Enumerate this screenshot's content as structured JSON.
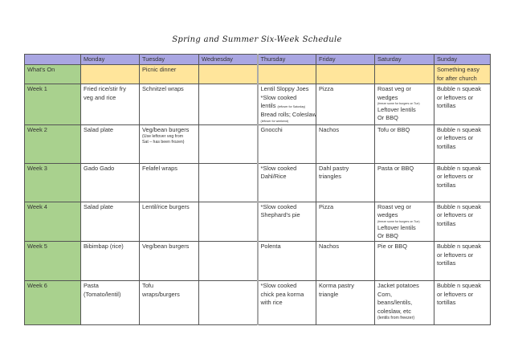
{
  "title": "Spring and Summer Six-Week Schedule",
  "colors": {
    "header": "#a9a6e2",
    "whats_on": "#ffe59b",
    "row_label": "#a9d18e"
  },
  "columns": [
    "",
    "Monday",
    "Tuesday",
    "Wednesday",
    "Thursday",
    "Friday",
    "Saturday",
    "Sunday"
  ],
  "rows": [
    {
      "label": "What's On",
      "cells": [
        [],
        [
          {
            "t": "Picnic dinner"
          }
        ],
        [],
        [],
        [],
        [],
        [
          {
            "t": "Something easy"
          },
          {
            "t": "for after church"
          }
        ]
      ]
    },
    {
      "label": "Week 1",
      "cells": [
        [
          {
            "t": "Fried rice/stir fry"
          },
          {
            "t": "veg and rice"
          }
        ],
        [
          {
            "t": "Schnitzel wraps"
          }
        ],
        [],
        [
          {
            "t": "Lentil Sloppy Joes"
          },
          {
            "t": "*Slow cooked"
          },
          {
            "t": "lentils",
            "note": "(leftover for Saturday)"
          },
          {
            "t": "Bread rolls; Coleslaw"
          },
          {
            "t": "(leftover for weekend)",
            "s": true
          }
        ],
        [
          {
            "t": "Pizza"
          }
        ],
        [
          {
            "t": "Roast veg or"
          },
          {
            "t": "wedges"
          },
          {
            "t": "(freeze some for burgers on Tue)",
            "s": true
          },
          {
            "t": "Leftover lentils"
          },
          {
            "t": "Or BBQ"
          }
        ],
        [
          {
            "t": "Bubble n squeak"
          },
          {
            "t": "or leftovers or"
          },
          {
            "t": "tortillas"
          }
        ]
      ]
    },
    {
      "label": "Week 2",
      "cells": [
        [
          {
            "t": "Salad plate"
          }
        ],
        [
          {
            "t": "Veg/bean burgers"
          },
          {
            "t": "(Use leftover veg from",
            "m": true
          },
          {
            "t": "Sat – has been frozen)",
            "m": true
          }
        ],
        [],
        [
          {
            "t": "Gnocchi"
          }
        ],
        [
          {
            "t": "Nachos"
          }
        ],
        [
          {
            "t": "Tofu or BBQ"
          }
        ],
        [
          {
            "t": "Bubble n squeak"
          },
          {
            "t": "or leftovers or"
          },
          {
            "t": "tortillas"
          }
        ]
      ]
    },
    {
      "label": "Week 3",
      "cells": [
        [
          {
            "t": "Gado Gado"
          }
        ],
        [
          {
            "t": "Felafel wraps"
          }
        ],
        [],
        [
          {
            "t": "*Slow cooked"
          },
          {
            "t": "Dahl/Rice"
          }
        ],
        [
          {
            "t": "Dahl pastry"
          },
          {
            "t": "triangles"
          }
        ],
        [
          {
            "t": "Pasta or BBQ"
          }
        ],
        [
          {
            "t": "Bubble n squeak"
          },
          {
            "t": "or leftovers or"
          },
          {
            "t": "tortillas"
          }
        ]
      ]
    },
    {
      "label": "Week 4",
      "cells": [
        [
          {
            "t": "Salad plate"
          }
        ],
        [
          {
            "t": "Lentil/rice burgers"
          }
        ],
        [],
        [
          {
            "t": "*Slow cooked"
          },
          {
            "t": "Shephard's pie"
          }
        ],
        [
          {
            "t": "Pizza"
          }
        ],
        [
          {
            "t": "Roast veg or"
          },
          {
            "t": "wedges"
          },
          {
            "t": "(freeze some for burgers on Tue)",
            "s": true
          },
          {
            "t": "Leftover lentils"
          },
          {
            "t": "Or BBQ"
          }
        ],
        [
          {
            "t": "Bubble n squeak"
          },
          {
            "t": "or leftovers or"
          },
          {
            "t": "tortillas"
          }
        ]
      ]
    },
    {
      "label": "Week 5",
      "cells": [
        [
          {
            "t": "Bibimbap (rice)"
          }
        ],
        [
          {
            "t": "Veg/bean  burgers"
          }
        ],
        [],
        [
          {
            "t": "Polenta"
          }
        ],
        [
          {
            "t": "Nachos"
          }
        ],
        [
          {
            "t": "Pie or BBQ"
          }
        ],
        [
          {
            "t": "Bubble n squeak"
          },
          {
            "t": "or leftovers or"
          },
          {
            "t": "tortillas"
          }
        ]
      ]
    },
    {
      "label": "Week 6",
      "cells": [
        [
          {
            "t": "Pasta"
          },
          {
            "t": "(Tomato/lentil)"
          }
        ],
        [
          {
            "t": "Tofu"
          },
          {
            "t": "wraps/burgers"
          }
        ],
        [],
        [
          {
            "t": "*Slow cooked"
          },
          {
            "t": "chick pea korma"
          },
          {
            "t": "with rice"
          }
        ],
        [
          {
            "t": "Korma pastry"
          },
          {
            "t": "triangle"
          }
        ],
        [
          {
            "t": "Jacket potatoes"
          },
          {
            "t": "Corn,"
          },
          {
            "t": "beans/lentils,"
          },
          {
            "t": "coleslaw, etc"
          },
          {
            "t": "(lentils from freezer)",
            "m": true
          }
        ],
        [
          {
            "t": "Bubble n squeak"
          },
          {
            "t": "or leftovers or"
          },
          {
            "t": "tortillas"
          }
        ]
      ]
    }
  ]
}
